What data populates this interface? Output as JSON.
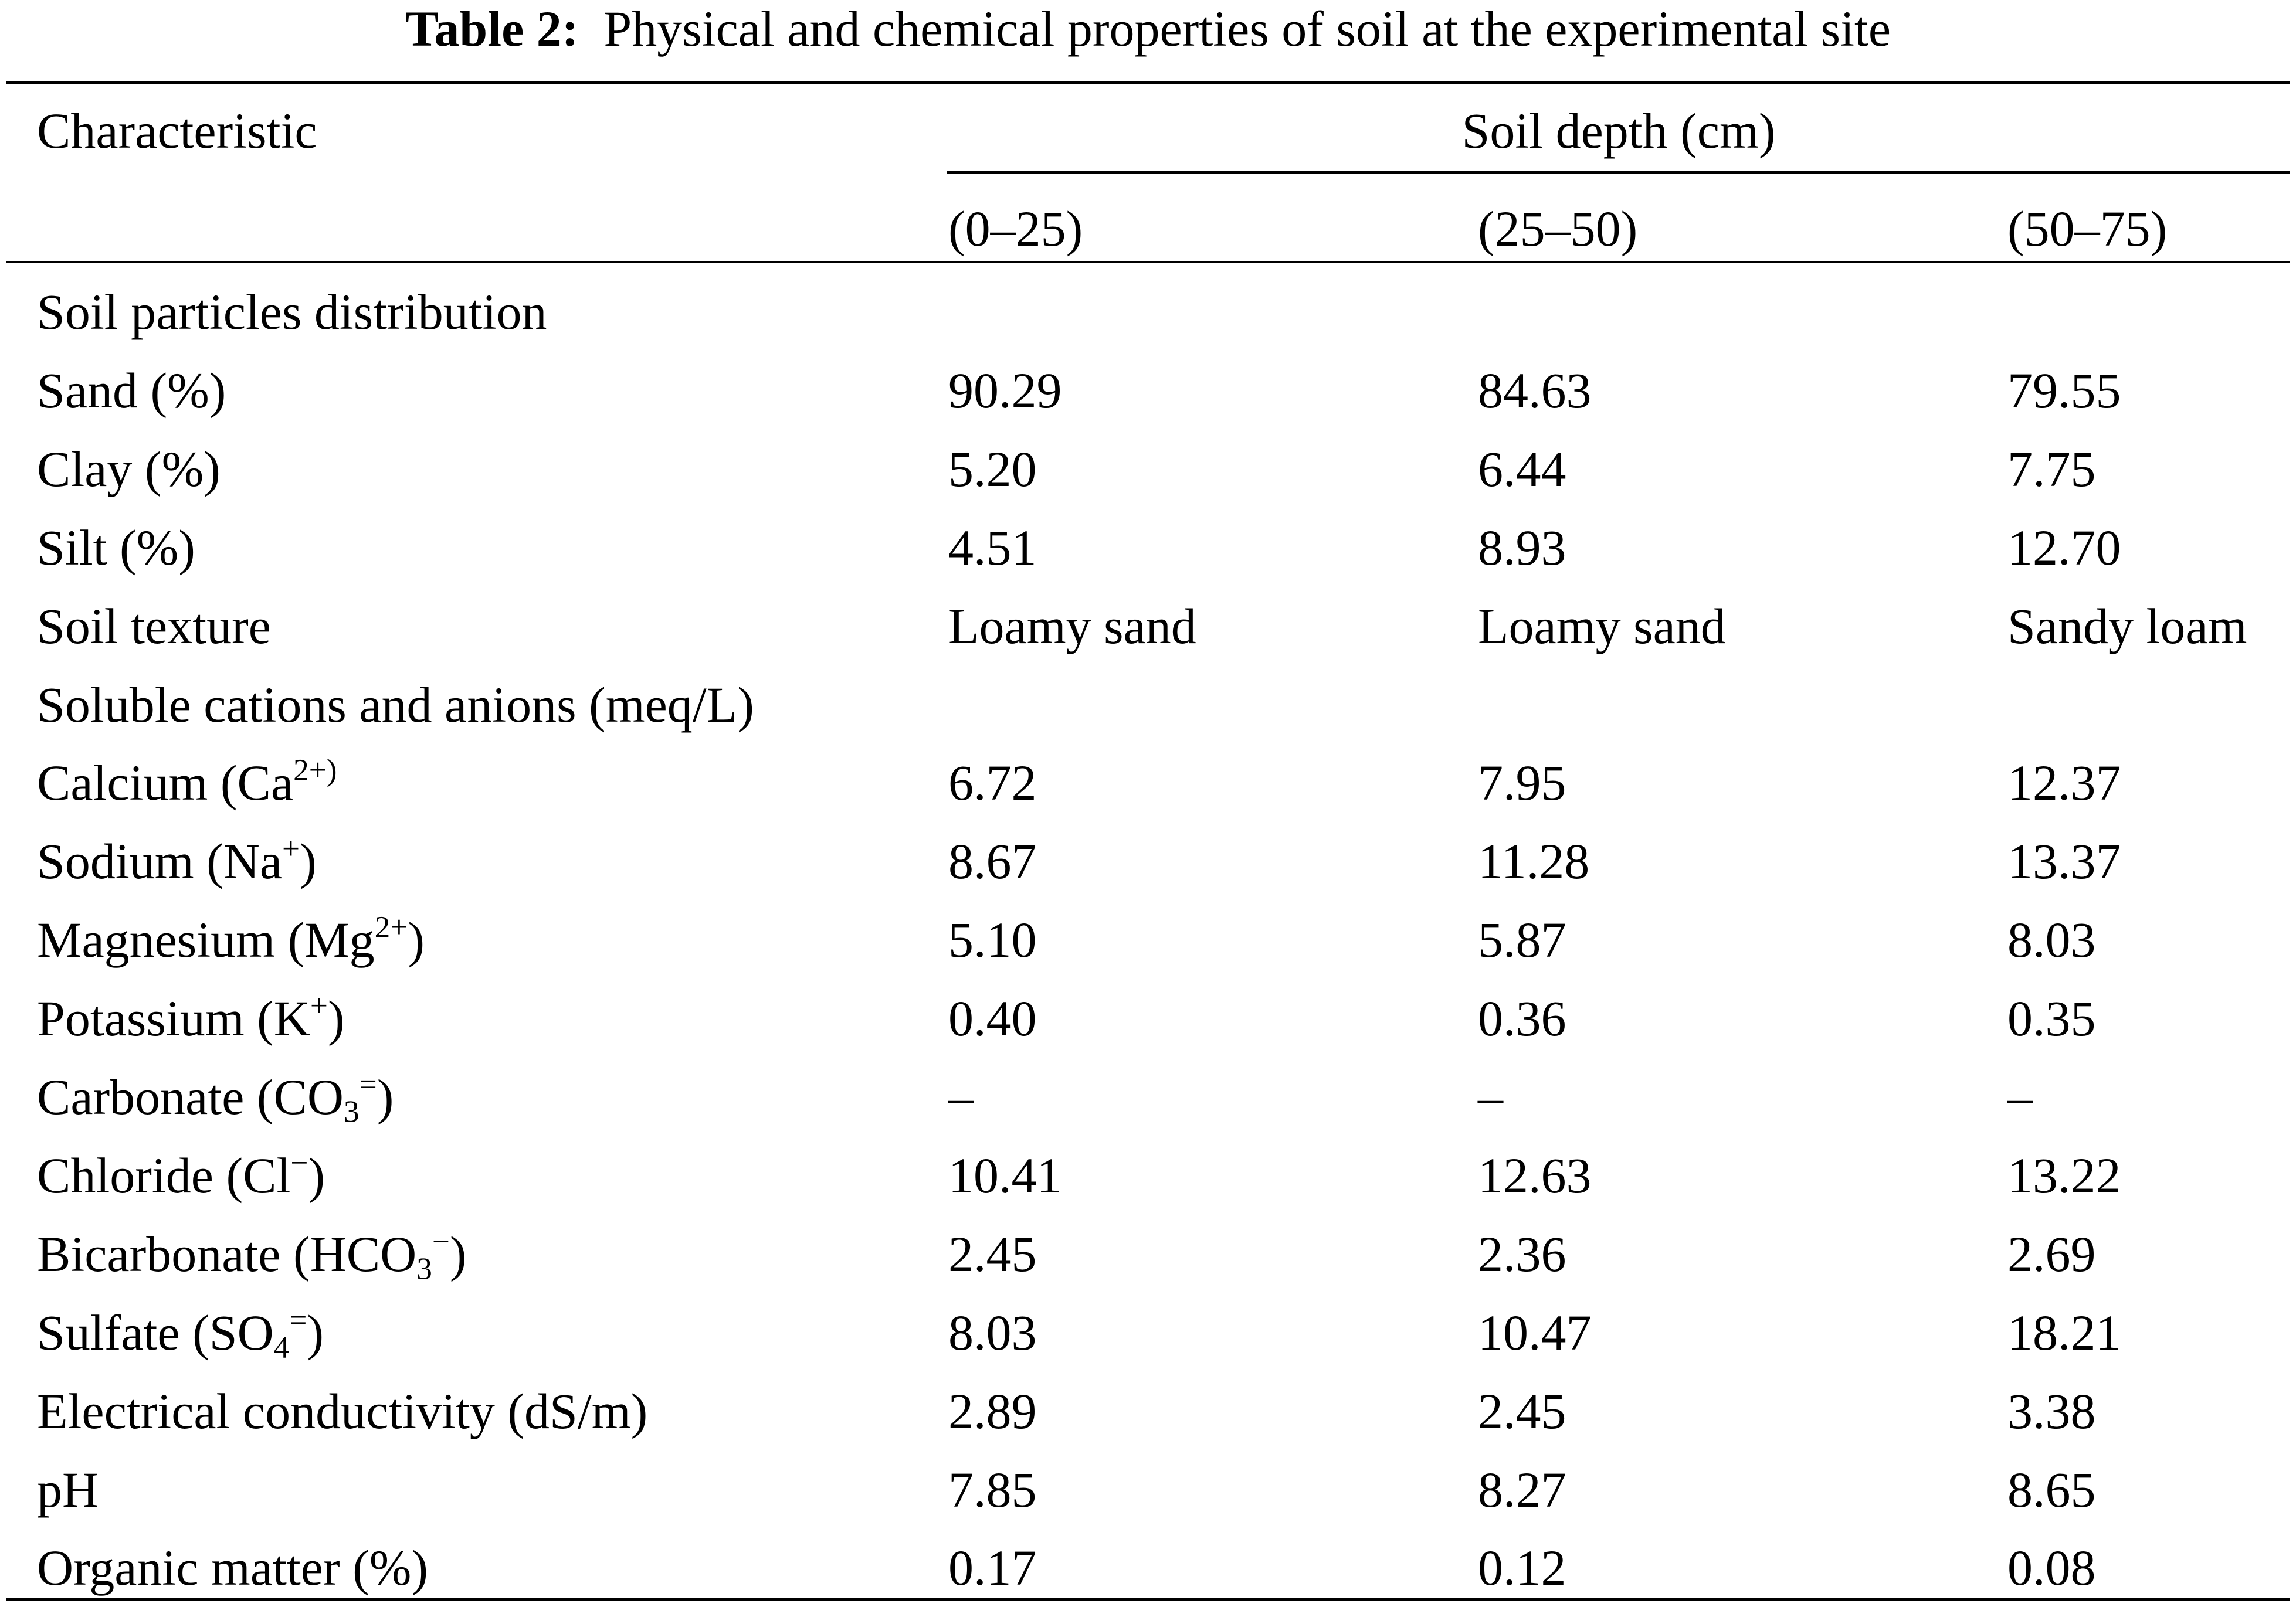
{
  "caption": {
    "label": "Table 2:",
    "title": "Physical and chemical properties of soil at the experimental site"
  },
  "header": {
    "characteristic": "Characteristic",
    "depth_group": "Soil depth (cm)",
    "depths": [
      "(0–25)",
      "(25–50)",
      "(50–75)"
    ]
  },
  "rows": [
    {
      "label": "Soil particles distribution",
      "values": [
        "",
        "",
        ""
      ]
    },
    {
      "label": "Sand (%)",
      "values": [
        "90.29",
        "84.63",
        "79.55"
      ]
    },
    {
      "label": "Clay (%)",
      "values": [
        "5.20",
        "6.44",
        "7.75"
      ]
    },
    {
      "label": "Silt (%)",
      "values": [
        "4.51",
        "8.93",
        "12.70"
      ]
    },
    {
      "label": "Soil texture",
      "values": [
        "Loamy sand",
        "Loamy sand",
        "Sandy loam"
      ]
    },
    {
      "label": "Soluble cations and anions (meq/L)",
      "values": [
        "",
        "",
        ""
      ]
    },
    {
      "label": "Calcium (Ca",
      "sup": "2+)",
      "after": "",
      "values": [
        "6.72",
        "7.95",
        "12.37"
      ]
    },
    {
      "label": "Sodium (Na",
      "sup": "+",
      "after": ")",
      "values": [
        "8.67",
        "11.28",
        "13.37"
      ]
    },
    {
      "label": "Magnesium (Mg",
      "sup": "2+",
      "after": ")",
      "values": [
        "5.10",
        "5.87",
        "8.03"
      ]
    },
    {
      "label": "Potassium (K",
      "sup": "+",
      "after": ")",
      "values": [
        "0.40",
        "0.36",
        "0.35"
      ]
    },
    {
      "label": "Carbonate (CO",
      "sub": "3",
      "sup": "=",
      "after": ")",
      "values": [
        "–",
        "–",
        "–"
      ]
    },
    {
      "label": "Chloride (Cl",
      "sup": "−",
      "after": ")",
      "values": [
        "10.41",
        "12.63",
        "13.22"
      ]
    },
    {
      "label": "Bicarbonate (HCO",
      "sub": "3",
      "sup": "−",
      "after": ")",
      "values": [
        "2.45",
        "2.36",
        "2.69"
      ]
    },
    {
      "label": "Sulfate (SO",
      "sub": "4",
      "sup": "=",
      "after": ")",
      "values": [
        "8.03",
        "10.47",
        "18.21"
      ]
    },
    {
      "label": "Electrical conductivity (dS/m)",
      "values": [
        "2.89",
        "2.45",
        "3.38"
      ]
    },
    {
      "label": "pH",
      "values": [
        "7.85",
        "8.27",
        "8.65"
      ]
    },
    {
      "label": "Organic matter (%)",
      "values": [
        "0.17",
        "0.12",
        "0.08"
      ]
    }
  ]
}
